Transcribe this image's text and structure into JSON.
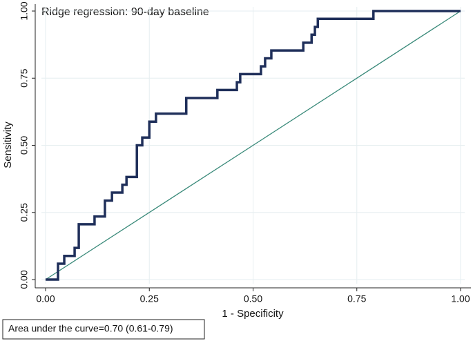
{
  "chart_data": {
    "type": "line",
    "title": "Ridge regression: 90-day baseline",
    "x_label": "1 - Specificity",
    "y_label": "Sensitivity",
    "annotation": "Area under the curve=0.70 (0.61-0.79)",
    "x": [
      0,
      0.03,
      0.03,
      0.045,
      0.045,
      0.07,
      0.07,
      0.08,
      0.08,
      0.118,
      0.118,
      0.143,
      0.143,
      0.16,
      0.16,
      0.185,
      0.185,
      0.195,
      0.195,
      0.22,
      0.22,
      0.233,
      0.233,
      0.25,
      0.25,
      0.266,
      0.266,
      0.339,
      0.339,
      0.414,
      0.414,
      0.461,
      0.461,
      0.469,
      0.469,
      0.519,
      0.519,
      0.529,
      0.529,
      0.544,
      0.544,
      0.621,
      0.621,
      0.641,
      0.641,
      0.649,
      0.649,
      0.656,
      0.656,
      0.79,
      0.79,
      1
    ],
    "series": [
      {
        "color": "#1f2f5a",
        "values": [
          0,
          0,
          0.059,
          0.059,
          0.088,
          0.088,
          0.118,
          0.118,
          0.206,
          0.206,
          0.235,
          0.235,
          0.294,
          0.294,
          0.324,
          0.324,
          0.353,
          0.353,
          0.382,
          0.382,
          0.5,
          0.5,
          0.529,
          0.529,
          0.588,
          0.588,
          0.618,
          0.618,
          0.676,
          0.676,
          0.706,
          0.706,
          0.735,
          0.735,
          0.765,
          0.765,
          0.794,
          0.794,
          0.824,
          0.824,
          0.853,
          0.853,
          0.882,
          0.882,
          0.912,
          0.912,
          0.941,
          0.941,
          0.971,
          0.971,
          1,
          1
        ]
      }
    ],
    "reference_line": {
      "x": [
        0,
        1
      ],
      "values": [
        0,
        1
      ],
      "color": "#3a8a7a"
    },
    "xlim": [
      0,
      1
    ],
    "ylim": [
      0,
      1
    ],
    "xticks": [
      {
        "value": 0,
        "label": "0.00"
      },
      {
        "value": 0.25,
        "label": "0.25"
      },
      {
        "value": 0.5,
        "label": "0.50"
      },
      {
        "value": 0.75,
        "label": "0.75"
      },
      {
        "value": 1,
        "label": "1.00"
      }
    ],
    "yticks": [
      {
        "value": 0,
        "label": "0.00"
      },
      {
        "value": 0.25,
        "label": "0.25"
      },
      {
        "value": 0.5,
        "label": "0.50"
      },
      {
        "value": 0.75,
        "label": "0.75"
      },
      {
        "value": 1,
        "label": "1.00"
      }
    ],
    "grid": true
  }
}
